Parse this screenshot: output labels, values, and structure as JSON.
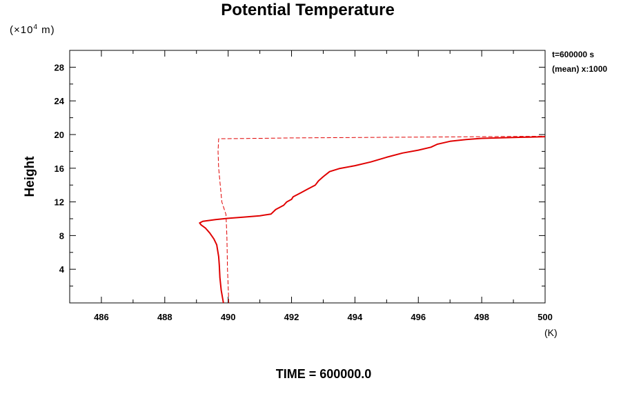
{
  "chart_data": {
    "type": "line",
    "title": "Potential Temperature",
    "y_multiplier": {
      "prefix": "(×10",
      "exponent": "4",
      "suffix": " m)"
    },
    "ylabel": "Height",
    "xlabel": "(K)",
    "xlim": [
      485,
      500
    ],
    "ylim": [
      0,
      30
    ],
    "x_ticks": [
      486,
      488,
      490,
      492,
      494,
      496,
      498,
      500
    ],
    "y_ticks": [
      4,
      8,
      12,
      16,
      20,
      24,
      28
    ],
    "annotations": [
      "t=600000 s",
      "(mean) x:1000"
    ],
    "footer": "TIME = 600000.0",
    "grid": false,
    "series": [
      {
        "style": "solid",
        "color": "#e00000",
        "points": [
          [
            489.85,
            0.0
          ],
          [
            489.78,
            1.5
          ],
          [
            489.74,
            3.0
          ],
          [
            489.72,
            4.5
          ],
          [
            489.7,
            5.5
          ],
          [
            489.64,
            6.9
          ],
          [
            489.55,
            7.6
          ],
          [
            489.42,
            8.3
          ],
          [
            489.28,
            8.9
          ],
          [
            489.15,
            9.25
          ],
          [
            489.1,
            9.5
          ],
          [
            489.2,
            9.7
          ],
          [
            489.6,
            9.9
          ],
          [
            490.0,
            10.05
          ],
          [
            490.5,
            10.2
          ],
          [
            491.0,
            10.35
          ],
          [
            491.35,
            10.55
          ],
          [
            491.5,
            11.1
          ],
          [
            491.75,
            11.6
          ],
          [
            491.85,
            12.0
          ],
          [
            492.0,
            12.3
          ],
          [
            492.05,
            12.6
          ],
          [
            492.3,
            13.1
          ],
          [
            492.5,
            13.5
          ],
          [
            492.75,
            14.0
          ],
          [
            492.85,
            14.5
          ],
          [
            493.0,
            15.0
          ],
          [
            493.2,
            15.6
          ],
          [
            493.5,
            15.95
          ],
          [
            494.0,
            16.3
          ],
          [
            494.5,
            16.75
          ],
          [
            495.0,
            17.3
          ],
          [
            495.5,
            17.8
          ],
          [
            496.0,
            18.15
          ],
          [
            496.4,
            18.5
          ],
          [
            496.6,
            18.85
          ],
          [
            497.0,
            19.2
          ],
          [
            497.5,
            19.4
          ],
          [
            498.0,
            19.55
          ],
          [
            499.0,
            19.65
          ],
          [
            500.0,
            19.75
          ]
        ]
      },
      {
        "style": "dashed",
        "color": "#e00000",
        "points": [
          [
            490.02,
            0.0
          ],
          [
            489.98,
            4.0
          ],
          [
            489.96,
            8.0
          ],
          [
            489.93,
            10.5
          ],
          [
            489.8,
            12.0
          ],
          [
            489.75,
            14.0
          ],
          [
            489.7,
            16.0
          ],
          [
            489.68,
            18.0
          ],
          [
            489.7,
            19.5
          ],
          [
            491.0,
            19.55
          ],
          [
            492.0,
            19.6
          ],
          [
            494.0,
            19.65
          ],
          [
            496.0,
            19.7
          ],
          [
            498.0,
            19.75
          ],
          [
            500.0,
            19.8
          ]
        ]
      }
    ]
  }
}
